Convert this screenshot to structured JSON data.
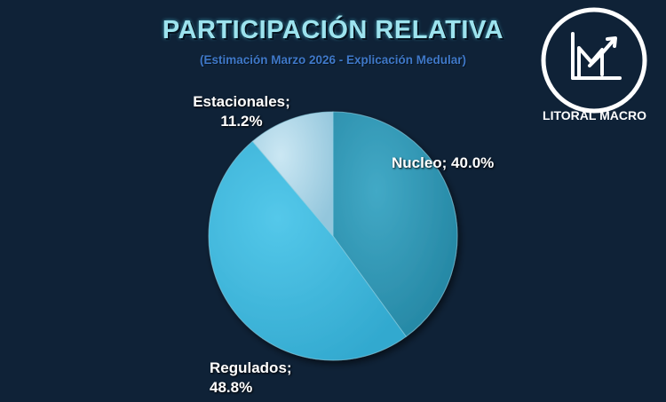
{
  "chart_data": {
    "type": "pie",
    "title": "PARTICIPACIÓN RELATIVA",
    "subtitle": "(Estimación Marzo 2026 - Explicación Medular)",
    "slices": [
      {
        "label": "Nucleo",
        "value": 40.0,
        "display": "Nucleo; 40.0%",
        "color": "#2f97b5"
      },
      {
        "label": "Regulados",
        "value": 48.8,
        "display_line1": "Regulados;",
        "display_line2": "48.8%",
        "color": "#3eb9dd"
      },
      {
        "label": "Estacionales",
        "value": 11.2,
        "display_line1": "Estacionales;",
        "display_line2": "11.2%",
        "color": "#a8d6ea"
      }
    ]
  },
  "logo": {
    "text": "LITORAL MACRO"
  }
}
